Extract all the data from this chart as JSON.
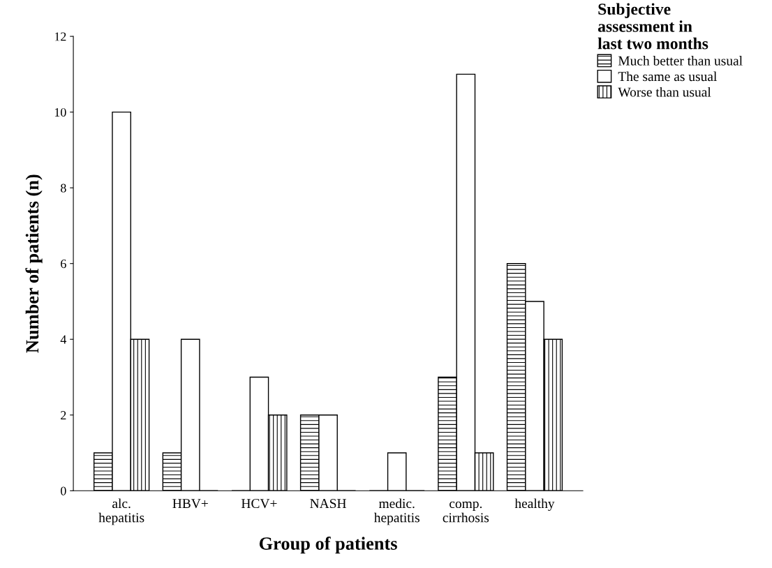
{
  "chart_data": {
    "type": "bar",
    "xlabel": "Group of patients",
    "ylabel": "Number of patients (n)",
    "legend_title": "Subjective\nassessment in\nlast two months",
    "categories": [
      "alc.\nhepatitis",
      "HBV+",
      "HCV+",
      "NASH",
      "medic.\nhepatitis",
      "comp.\ncirrhosis",
      "healthy"
    ],
    "series": [
      {
        "name": "Much better than usual",
        "color": "#000000",
        "values": [
          1,
          1,
          0,
          2,
          0,
          3,
          6
        ]
      },
      {
        "name": "The same as usual",
        "color": "#000000",
        "values": [
          10,
          4,
          3,
          2,
          1,
          11,
          5
        ]
      },
      {
        "name": "Worse than usual",
        "color": "#000000",
        "values": [
          4,
          0,
          2,
          0,
          0,
          1,
          4
        ]
      }
    ],
    "ylim": [
      0,
      12
    ],
    "yticks": [
      0,
      2,
      4,
      6,
      8,
      10,
      12
    ],
    "grid": false,
    "legend": "top right"
  }
}
